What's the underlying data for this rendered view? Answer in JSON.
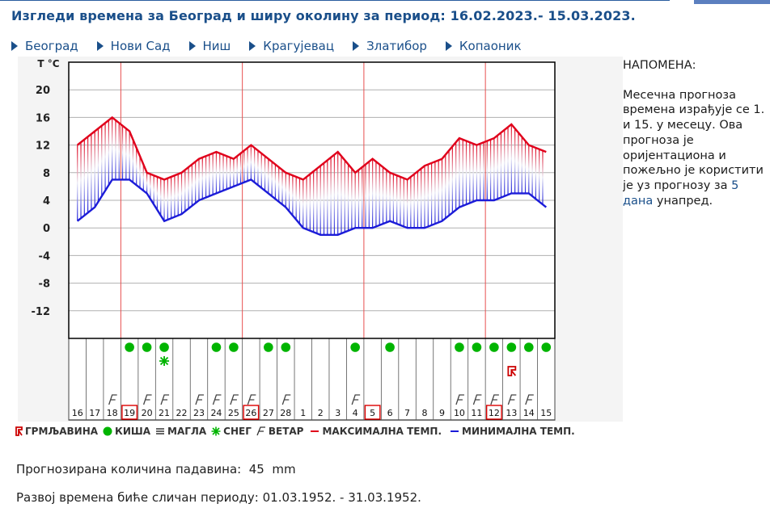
{
  "title": "Изгледи времена за Београд и ширу околину за период: 16.02.2023.- 15.03.2023.",
  "cities": [
    "Београд",
    "Нови Сад",
    "Ниш",
    "Крагујевац",
    "Златибор",
    "Копаоник"
  ],
  "note": {
    "heading": "НАПОМЕНА:",
    "text": "Месечна прогноза времена израђује се 1. и 15. у месецу. Ова прогноза је оријентациона и пожељно је користити је уз прогнозу за",
    "link": "5 дана",
    "tail": "унапред."
  },
  "legend": {
    "thunder": "ГРМЉАВИНА",
    "rain": "КИША",
    "fog": "МАГЛА",
    "snow": "СНЕГ",
    "wind": "ВЕТАР",
    "max": "МАКСИМАЛНА ТЕМП.",
    "min": "МИНИМАЛНА ТЕМП."
  },
  "precip": {
    "label": "Прогнозирана количина падавина:",
    "value": "45",
    "unit": "mm"
  },
  "analog": {
    "label": "Развој времена биће сличан периоду:",
    "value": "01.03.1952. - 31.03.1952."
  },
  "colors": {
    "max": "#e0001b",
    "min": "#1c1cd8",
    "rain": "#00b400",
    "snow": "#00b400",
    "thunder": "#cc0000",
    "accent": "#1a4f8a"
  },
  "chart_data": {
    "type": "line",
    "ylabel": "T °C",
    "yticks": [
      20,
      16,
      12,
      8,
      4,
      0,
      -4,
      -8,
      -12
    ],
    "ylim": [
      -16,
      24
    ],
    "days": [
      "16",
      "17",
      "18",
      "19",
      "20",
      "21",
      "22",
      "23",
      "24",
      "25",
      "26",
      "27",
      "28",
      "1",
      "2",
      "3",
      "4",
      "5",
      "6",
      "7",
      "8",
      "9",
      "10",
      "11",
      "12",
      "13",
      "14",
      "15"
    ],
    "highlighted_days": [
      "19",
      "26",
      "5",
      "12"
    ],
    "series": [
      {
        "name": "МАКСИМАЛНА ТЕМП.",
        "values": [
          12,
          14,
          16,
          14,
          8,
          7,
          8,
          10,
          11,
          10,
          12,
          10,
          8,
          7,
          9,
          11,
          8,
          10,
          8,
          7,
          9,
          10,
          13,
          12,
          13,
          15,
          12,
          11
        ]
      },
      {
        "name": "МИНИМАЛНА ТЕМП.",
        "values": [
          1,
          3,
          7,
          7,
          5,
          1,
          2,
          4,
          5,
          6,
          7,
          5,
          3,
          0,
          -1,
          -1,
          0,
          0,
          1,
          0,
          0,
          1,
          3,
          4,
          4,
          5,
          5,
          3
        ]
      }
    ],
    "rain": [
      false,
      false,
      false,
      true,
      true,
      true,
      false,
      false,
      true,
      true,
      false,
      true,
      true,
      false,
      false,
      false,
      true,
      false,
      true,
      false,
      false,
      false,
      true,
      true,
      true,
      true,
      true,
      true
    ],
    "snow": [
      false,
      false,
      false,
      false,
      false,
      true,
      false,
      false,
      false,
      false,
      false,
      false,
      false,
      false,
      false,
      false,
      false,
      false,
      false,
      false,
      false,
      false,
      false,
      false,
      false,
      false,
      false,
      false
    ],
    "thunder": [
      false,
      false,
      false,
      false,
      false,
      false,
      false,
      false,
      false,
      false,
      false,
      false,
      false,
      false,
      false,
      false,
      false,
      false,
      false,
      false,
      false,
      false,
      false,
      false,
      false,
      true,
      false,
      false
    ],
    "wind": [
      false,
      false,
      true,
      false,
      true,
      true,
      false,
      true,
      true,
      true,
      true,
      false,
      true,
      false,
      false,
      false,
      true,
      false,
      false,
      false,
      false,
      false,
      true,
      true,
      true,
      true,
      true,
      false
    ]
  }
}
